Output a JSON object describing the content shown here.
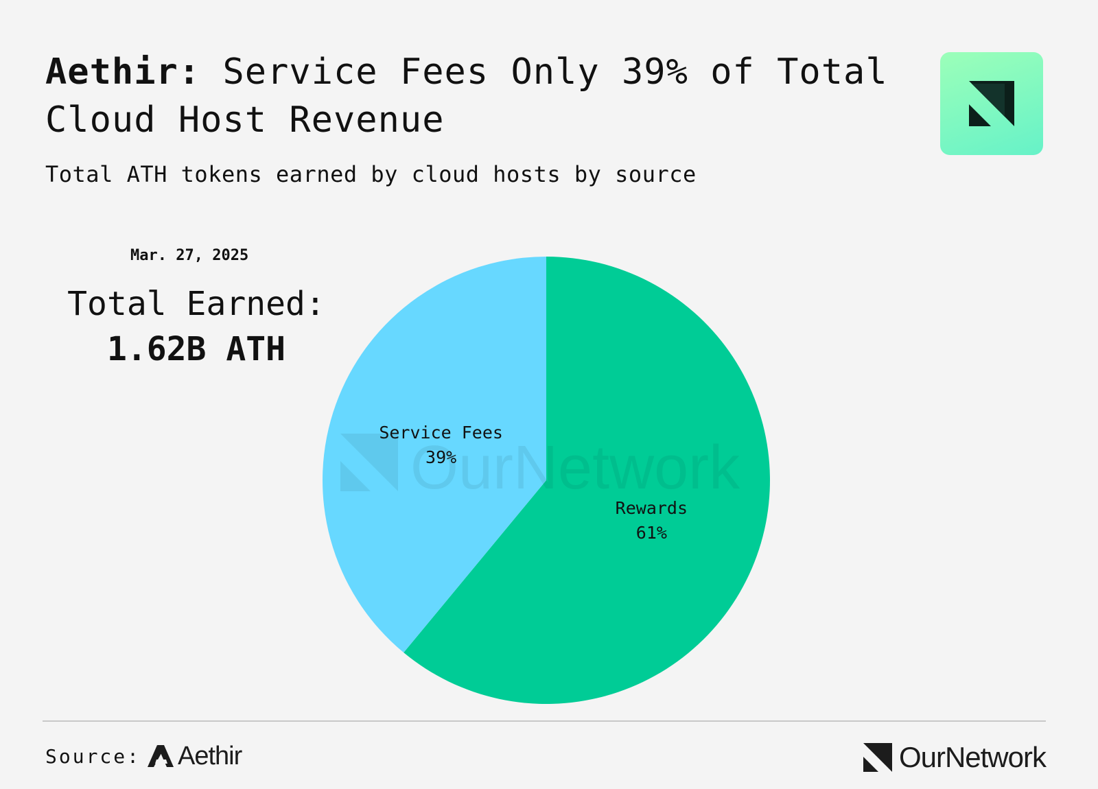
{
  "header": {
    "title_strong": "Aethir:",
    "title_rest": " Service Fees Only 39% of Total Cloud Host Revenue",
    "subtitle": "Total ATH tokens earned by cloud hosts by source"
  },
  "summary": {
    "date": "Mar. 27, 2025",
    "total_label": "Total Earned:",
    "total_value": "1.62B ATH"
  },
  "footer": {
    "source_label": "Source:",
    "source_name": "Aethir",
    "brand_name": "OurNetwork"
  },
  "watermark": "OurNetwork",
  "colors": {
    "background": "#f4f4f4",
    "service_fees": "#67d8ff",
    "rewards": "#00cc96",
    "brand_tile_top": "#9cffb9",
    "brand_tile_bottom": "#66f2c8",
    "text": "#111111"
  },
  "chart_data": {
    "type": "pie",
    "title": "Aethir: Service Fees Only 39% of Total Cloud Host Revenue",
    "subtitle": "Total ATH tokens earned by cloud hosts by source",
    "total": "1.62B ATH",
    "legend": "none",
    "slices": [
      {
        "label": "Rewards",
        "value": 61,
        "display": "61%",
        "color": "#00cc96"
      },
      {
        "label": "Service Fees",
        "value": 39,
        "display": "39%",
        "color": "#67d8ff"
      }
    ]
  }
}
